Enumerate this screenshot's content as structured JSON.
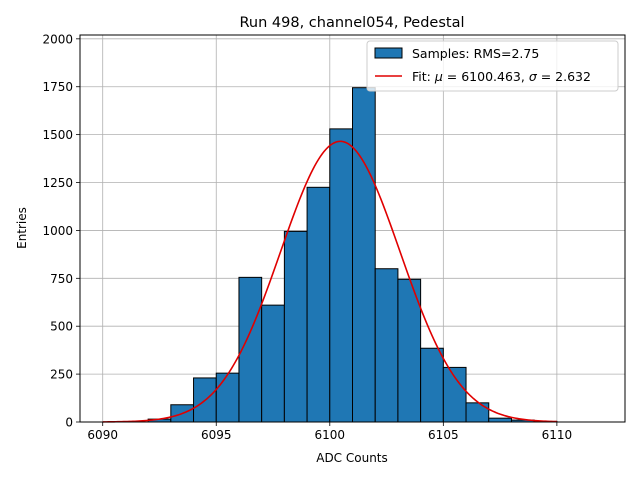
{
  "chart_data": {
    "type": "bar",
    "title": "Run 498, channel054, Pedestal",
    "xlabel": "ADC Counts",
    "ylabel": "Entries",
    "xlim": [
      6089,
      6113
    ],
    "ylim": [
      0,
      2020
    ],
    "xticks": [
      6090,
      6095,
      6100,
      6105,
      6110
    ],
    "yticks": [
      0,
      250,
      500,
      750,
      1000,
      1250,
      1500,
      1750,
      2000
    ],
    "grid": true,
    "legend_placement": "top-right",
    "histogram": {
      "name": "Samples: RMS=2.75",
      "bin_width": 1,
      "bin_starts": [
        6092,
        6093,
        6094,
        6095,
        6096,
        6097,
        6098,
        6099,
        6100,
        6101,
        6102,
        6103,
        6104,
        6105,
        6106,
        6107,
        6108,
        6109
      ],
      "values": [
        15,
        90,
        230,
        255,
        755,
        610,
        995,
        1225,
        1530,
        1745,
        800,
        745,
        385,
        285,
        100,
        20,
        10,
        3
      ],
      "color": "#1f77b4",
      "edge_color": "#000000"
    },
    "fit": {
      "name_prefix": "Fit: ",
      "mu_symbol": "μ",
      "mu_text": " = 6100.463, ",
      "sigma_symbol": "σ",
      "sigma_text": " = 2.632",
      "mu": 6100.463,
      "sigma": 2.632,
      "amplitude": 1465,
      "x_range": [
        6090,
        6110
      ],
      "color": "#e00000"
    }
  }
}
